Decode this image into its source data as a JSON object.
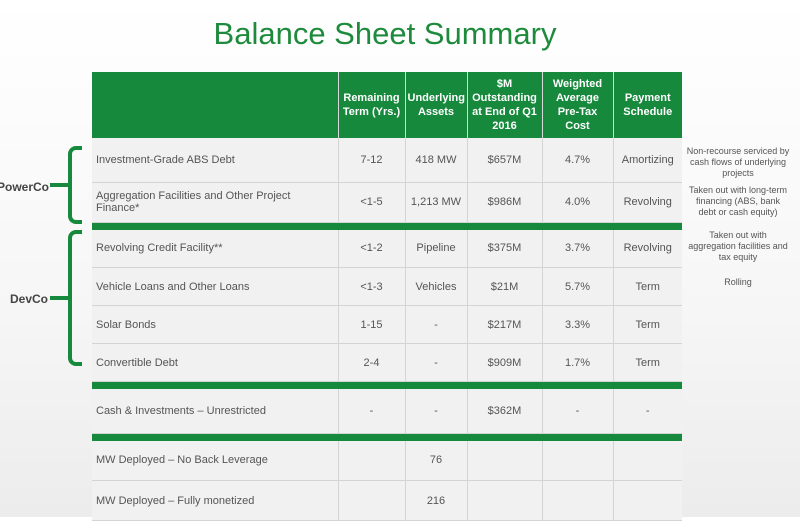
{
  "title": "Balance Sheet Summary",
  "table": {
    "headers": [
      "",
      "Remaining Term (Yrs.)",
      "Underlying Assets",
      "$M Outstanding at End of Q1 2016",
      "Weighted Average Pre-Tax Cost",
      "Payment Schedule"
    ],
    "rows": [
      [
        "Investment-Grade ABS Debt",
        "7-12",
        "418 MW",
        "$657M",
        "4.7%",
        "Amortizing"
      ],
      [
        "Aggregation Facilities and Other Project Finance*",
        "<1-5",
        "1,213 MW",
        "$986M",
        "4.0%",
        "Revolving"
      ],
      [
        "Revolving Credit Facility**",
        "<1-2",
        "Pipeline",
        "$375M",
        "3.7%",
        "Revolving"
      ],
      [
        "Vehicle Loans and Other Loans",
        "<1-3",
        "Vehicles",
        "$21M",
        "5.7%",
        "Term"
      ],
      [
        "Solar Bonds",
        "1-15",
        "-",
        "$217M",
        "3.3%",
        "Term"
      ],
      [
        "Convertible Debt",
        "2-4",
        "-",
        "$909M",
        "1.7%",
        "Term"
      ],
      [
        "Cash & Investments – Unrestricted",
        "-",
        "-",
        "$362M",
        "-",
        "-"
      ],
      [
        "MW Deployed – No Back Leverage",
        "",
        "76",
        "",
        "",
        ""
      ],
      [
        "MW Deployed – Fully monetized",
        "",
        "216",
        "",
        "",
        ""
      ]
    ]
  },
  "groups": {
    "powerco": "PowerCo",
    "devco": "DevCo"
  },
  "notes": [
    "Non-recourse serviced by cash flows of underlying projects",
    "Taken out with long-term financing (ABS, bank debt or cash equity)",
    "Taken out with aggregation facilities and tax equity",
    "Rolling"
  ],
  "colors": {
    "accent": "#17893c",
    "title": "#1e8b3c",
    "cell_bg": "#f1f1f1"
  }
}
